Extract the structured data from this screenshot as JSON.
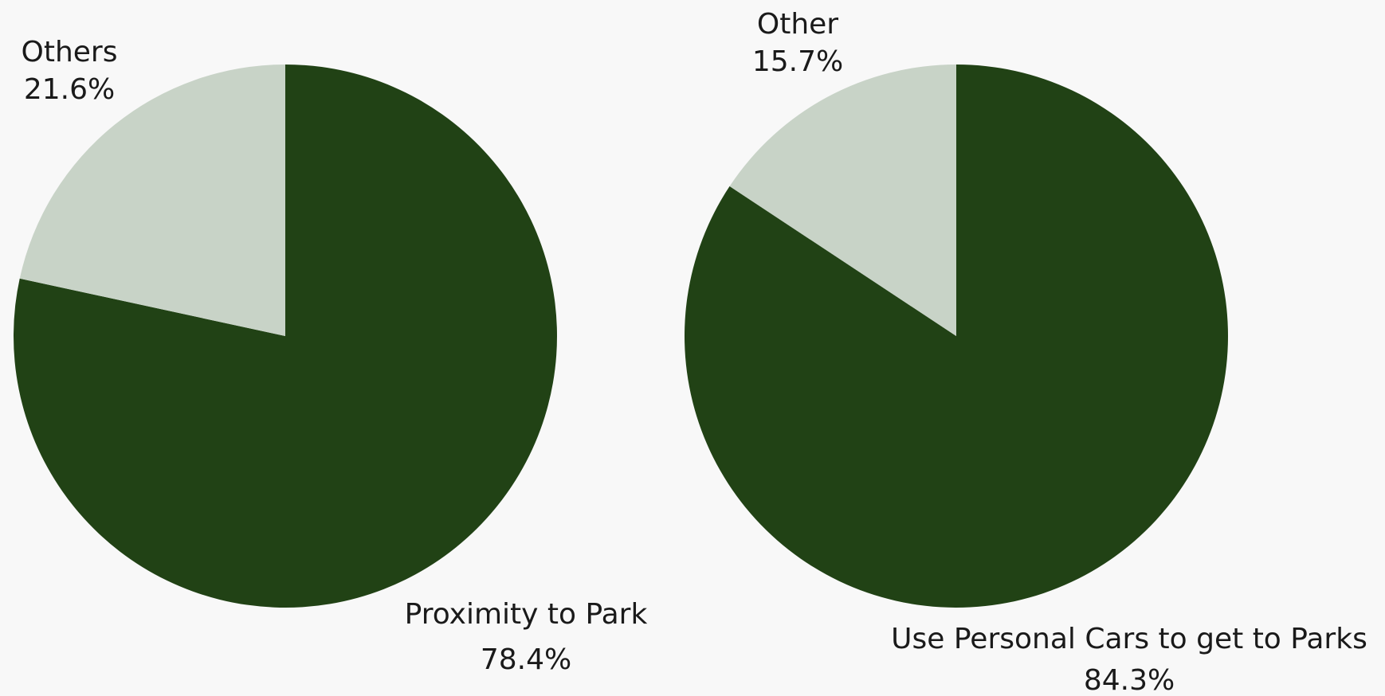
{
  "colors": {
    "background": "#f8f8f8",
    "primary_slice": "#214215",
    "secondary_slice": "#c8d3c7"
  },
  "chart_data": [
    {
      "type": "pie",
      "title": "",
      "slices": [
        {
          "label": "Proximity to Park",
          "value": 78.4,
          "display": "78.4%",
          "color": "#214215"
        },
        {
          "label": "Others",
          "value": 21.6,
          "display": "21.6%",
          "color": "#c8d3c7"
        }
      ]
    },
    {
      "type": "pie",
      "title": "",
      "slices": [
        {
          "label": "Use Personal Cars to get to Parks",
          "value": 84.3,
          "display": "84.3%",
          "color": "#214215"
        },
        {
          "label": "Other",
          "value": 15.7,
          "display": "15.7%",
          "color": "#c8d3c7"
        }
      ]
    }
  ]
}
